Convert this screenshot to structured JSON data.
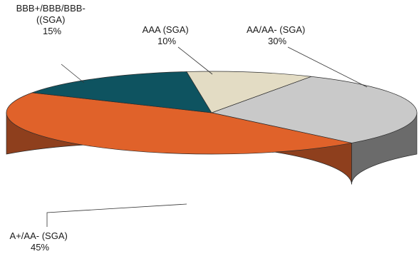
{
  "chart_data": {
    "type": "pie",
    "style": "3d",
    "slices": [
      {
        "label_lines": [
          "AA/AA- (SGA)"
        ],
        "percent_label": "30%",
        "value": 30,
        "color": "#c9c9c9",
        "side_color": "#6b6b6b"
      },
      {
        "label_lines": [
          "A+/AA- (SGA)"
        ],
        "percent_label": "45%",
        "value": 45,
        "color": "#e0622a",
        "side_color": "#8e3f1d"
      },
      {
        "label_lines": [
          "BBB+/BBB/BBB-",
          "((SGA)"
        ],
        "percent_label": "15%",
        "value": 15,
        "color": "#0e5360",
        "side_color": "#0a3b44"
      },
      {
        "label_lines": [
          "AAA (SGA)"
        ],
        "percent_label": "10%",
        "value": 10,
        "color": "#e3dcc4",
        "side_color": "#a89f85"
      }
    ],
    "legend": "none"
  }
}
